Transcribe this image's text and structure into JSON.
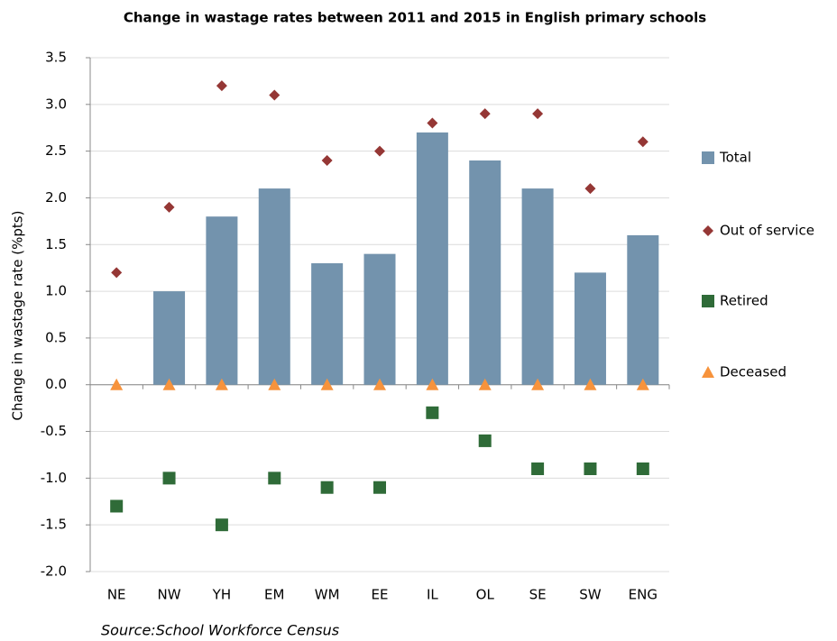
{
  "chart_data": {
    "type": "bar",
    "title": "Change in wastage rates between 2011 and 2015 in English primary schools",
    "y_label": "Change in wastage rate (%pts)",
    "source": "Source:School Workforce Census",
    "categories": [
      "NE",
      "NW",
      "YH",
      "EM",
      "WM",
      "EE",
      "IL",
      "OL",
      "SE",
      "SW",
      "ENG"
    ],
    "series": [
      {
        "name": "Total",
        "type": "bar",
        "color": "#7393ad",
        "values": [
          0,
          1.0,
          1.8,
          2.1,
          1.3,
          1.4,
          2.7,
          2.4,
          2.1,
          1.2,
          1.6
        ]
      },
      {
        "name": "Out of service",
        "type": "scatter",
        "marker": "diamond",
        "color": "#953735",
        "values": [
          1.2,
          1.9,
          3.2,
          3.1,
          2.4,
          2.5,
          2.8,
          2.9,
          2.9,
          2.1,
          2.6
        ]
      },
      {
        "name": "Retired",
        "type": "scatter",
        "marker": "square",
        "color": "#2f6b38",
        "values": [
          -1.3,
          -1.0,
          -1.5,
          -1.0,
          -1.1,
          -1.1,
          -0.3,
          -0.6,
          -0.9,
          -0.9,
          -0.9
        ]
      },
      {
        "name": "Deceased",
        "type": "scatter",
        "marker": "triangle",
        "color": "#f7933c",
        "values": [
          0,
          0,
          0,
          0,
          0,
          0,
          0,
          0,
          0,
          0,
          0
        ]
      }
    ],
    "ylim": [
      -2.0,
      3.5
    ],
    "yticks": [
      {
        "value": -2,
        "label": "-2.0"
      },
      -1.5,
      {
        "value": -1,
        "label": "-1.0"
      },
      -0.5,
      {
        "value": 0,
        "label": "0.0"
      },
      0.5,
      {
        "value": 1,
        "label": "1.0"
      },
      1.5,
      {
        "value": 2,
        "label": "2.0"
      },
      2.5,
      {
        "value": 3,
        "label": "3.0"
      },
      3.5
    ],
    "grid": true,
    "legend": "right"
  }
}
